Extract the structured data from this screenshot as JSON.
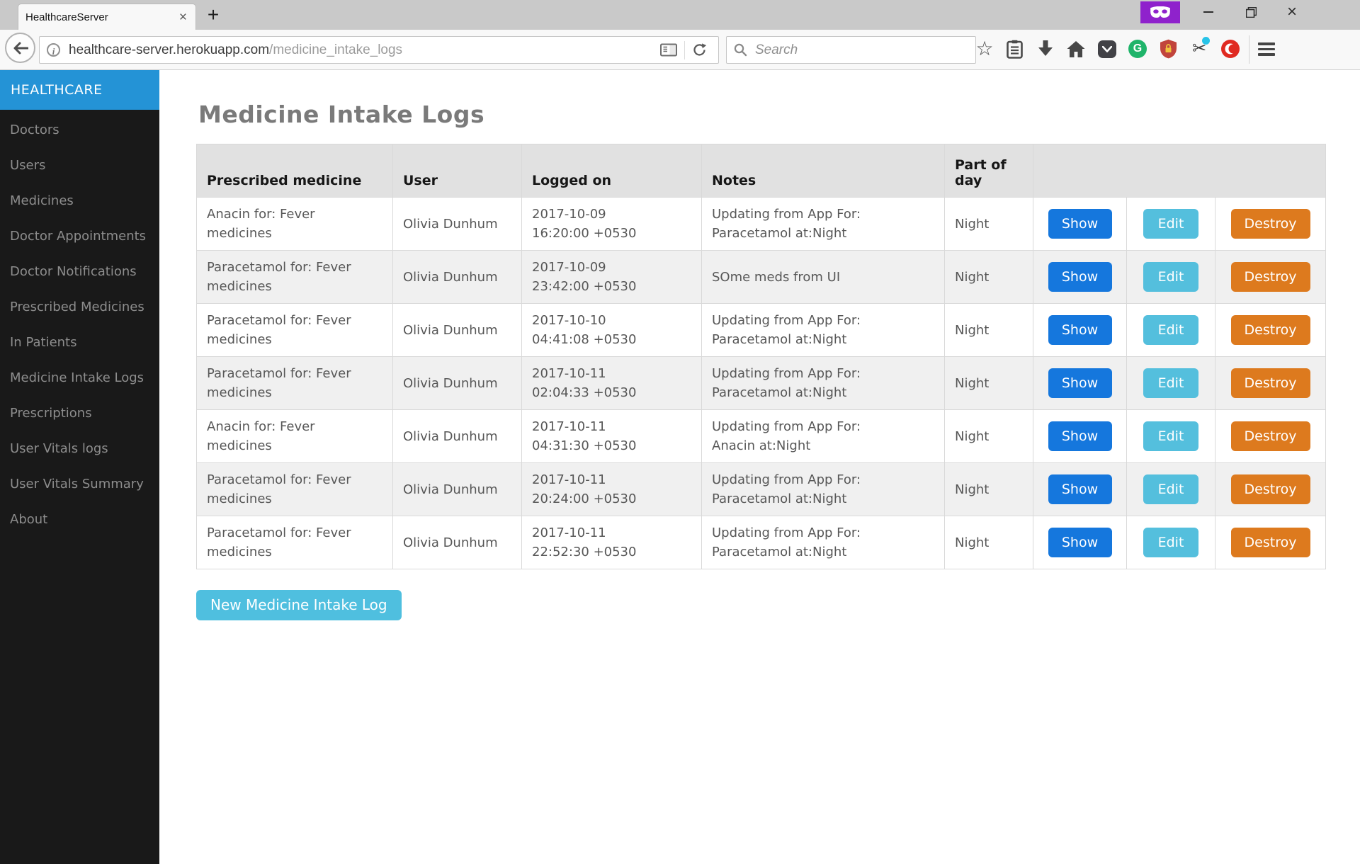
{
  "browser": {
    "tab": {
      "title": "HealthcareServer"
    },
    "url": {
      "host": "healthcare-server.herokuapp.com",
      "path": "/medicine_intake_logs"
    },
    "search": {
      "placeholder": "Search"
    },
    "icons": {
      "close": "×",
      "new_tab": "+",
      "star": "☆",
      "scissors": "✂"
    }
  },
  "sidebar": {
    "brand": "HEALTHCARE",
    "items": [
      "Doctors",
      "Users",
      "Medicines",
      "Doctor Appointments",
      "Doctor Notifications",
      "Prescribed Medicines",
      "In Patients",
      "Medicine Intake Logs",
      "Prescriptions",
      "User Vitals logs",
      "User Vitals Summary",
      "About"
    ]
  },
  "main": {
    "title": "Medicine Intake Logs",
    "new_button": "New Medicine Intake Log",
    "table": {
      "headers": [
        "Prescribed medicine",
        "User",
        "Logged on",
        "Notes",
        "Part of day"
      ],
      "actions": [
        "Show",
        "Edit",
        "Destroy"
      ],
      "rows": [
        {
          "medicine": "Anacin for: Fever\nmedicines",
          "user": "Olivia Dunhum",
          "logged_on": "2017-10-09\n16:20:00 +0530",
          "notes": "Updating from App For:\nParacetamol at:Night",
          "part_of_day": "Night"
        },
        {
          "medicine": "Paracetamol for: Fever\nmedicines",
          "user": "Olivia Dunhum",
          "logged_on": "2017-10-09\n23:42:00 +0530",
          "notes": "SOme meds from UI",
          "part_of_day": "Night"
        },
        {
          "medicine": "Paracetamol for: Fever\nmedicines",
          "user": "Olivia Dunhum",
          "logged_on": "2017-10-10\n04:41:08 +0530",
          "notes": "Updating from App For:\nParacetamol at:Night",
          "part_of_day": "Night"
        },
        {
          "medicine": "Paracetamol for: Fever\nmedicines",
          "user": "Olivia Dunhum",
          "logged_on": "2017-10-11\n02:04:33 +0530",
          "notes": "Updating from App For:\nParacetamol at:Night",
          "part_of_day": "Night"
        },
        {
          "medicine": "Anacin for: Fever\nmedicines",
          "user": "Olivia Dunhum",
          "logged_on": "2017-10-11\n04:31:30 +0530",
          "notes": "Updating from App For:\nAnacin at:Night",
          "part_of_day": "Night"
        },
        {
          "medicine": "Paracetamol for: Fever\nmedicines",
          "user": "Olivia Dunhum",
          "logged_on": "2017-10-11\n20:24:00 +0530",
          "notes": "Updating from App For:\nParacetamol at:Night",
          "part_of_day": "Night"
        },
        {
          "medicine": "Paracetamol for: Fever\nmedicines",
          "user": "Olivia Dunhum",
          "logged_on": "2017-10-11\n22:52:30 +0530",
          "notes": "Updating from App For:\nParacetamol at:Night",
          "part_of_day": "Night"
        }
      ]
    }
  },
  "colors": {
    "brand_blue": "#2493d6",
    "sidebar_bg": "#191919",
    "show_blue": "#1577dd",
    "edit_cyan": "#54bfdd",
    "destroy_orange": "#dd7a1e",
    "new_button_cyan": "#4fbfdf",
    "header_gray": "#e1e1e1",
    "stripe_gray": "#f0f0f0",
    "private_purple": "#8f22cc"
  }
}
